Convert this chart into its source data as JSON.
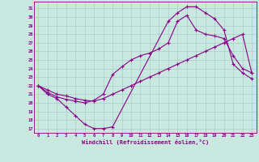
{
  "xlabel": "Windchill (Refroidissement éolien,°C)",
  "xlim": [
    -0.5,
    23.5
  ],
  "ylim": [
    16.5,
    31.8
  ],
  "xticks": [
    0,
    1,
    2,
    3,
    4,
    5,
    6,
    7,
    8,
    9,
    10,
    11,
    12,
    13,
    14,
    15,
    16,
    17,
    18,
    19,
    20,
    21,
    22,
    23
  ],
  "yticks": [
    17,
    18,
    19,
    20,
    21,
    22,
    23,
    24,
    25,
    26,
    27,
    28,
    29,
    30,
    31
  ],
  "bg_color": "#c8e8e0",
  "line_color": "#880088",
  "grid_color": "#aacccc",
  "curve1_x": [
    0,
    1,
    2,
    3,
    4,
    5,
    6,
    7,
    8,
    14,
    15,
    16,
    17,
    18,
    19,
    20,
    21,
    22,
    23
  ],
  "curve1_y": [
    22,
    21,
    20.5,
    19.5,
    18.5,
    17.5,
    17,
    17,
    17.2,
    29.5,
    30.5,
    31.2,
    31.2,
    30.5,
    29.8,
    28.5,
    24.5,
    23.5,
    22.8
  ],
  "curve2_x": [
    0,
    1,
    2,
    3,
    4,
    5,
    6,
    7,
    8,
    9,
    10,
    11,
    12,
    13,
    14,
    15,
    16,
    17,
    18,
    19,
    20,
    21,
    22,
    23
  ],
  "curve2_y": [
    22,
    21.2,
    20.7,
    20.4,
    20.2,
    20.0,
    20.3,
    21.0,
    23.3,
    24.2,
    25.0,
    25.5,
    25.8,
    26.3,
    27.0,
    29.5,
    30.2,
    28.5,
    28.0,
    27.8,
    27.5,
    25.5,
    24.0,
    23.5
  ],
  "curve3_x": [
    0,
    1,
    2,
    3,
    4,
    5,
    6,
    7,
    8,
    9,
    10,
    11,
    12,
    13,
    14,
    15,
    16,
    17,
    18,
    19,
    20,
    21,
    22,
    23
  ],
  "curve3_y": [
    22,
    21.5,
    21.0,
    20.8,
    20.5,
    20.3,
    20.2,
    20.5,
    21.0,
    21.5,
    22.0,
    22.5,
    23.0,
    23.5,
    24.0,
    24.5,
    25.0,
    25.5,
    26.0,
    26.5,
    27.0,
    27.5,
    28.0,
    23.5
  ]
}
